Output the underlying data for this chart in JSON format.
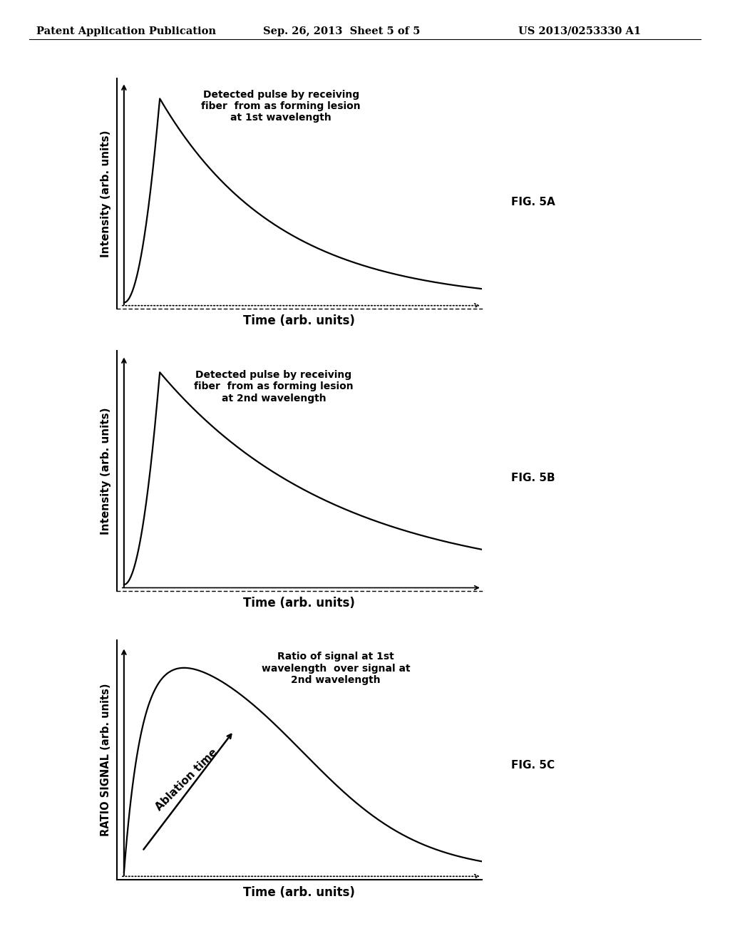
{
  "header_left": "Patent Application Publication",
  "header_center": "Sep. 26, 2013  Sheet 5 of 5",
  "header_right": "US 2013/0253330 A1",
  "fig5a_label": "FIG. 5A",
  "fig5b_label": "FIG. 5B",
  "fig5c_label": "FIG. 5C",
  "fig5a_annotation": "Detected pulse by receiving\nfiber  from as forming lesion\nat 1st wavelength",
  "fig5b_annotation": "Detected pulse by receiving\nfiber  from as forming lesion\nat 2nd wavelength",
  "fig5c_annotation": "Ratio of signal at 1st\nwavelength  over signal at\n2nd wavelength",
  "fig5c_arrow_label": "Ablation time",
  "ylabel_ab": "Intensity (arb. units)",
  "ylabel_c": "RATIO SIGNAL (arb. units)",
  "xlabel": "Time (arb. units)",
  "bg_color": "#ffffff",
  "line_color": "#000000",
  "text_color": "#000000",
  "header_color": "#000000"
}
